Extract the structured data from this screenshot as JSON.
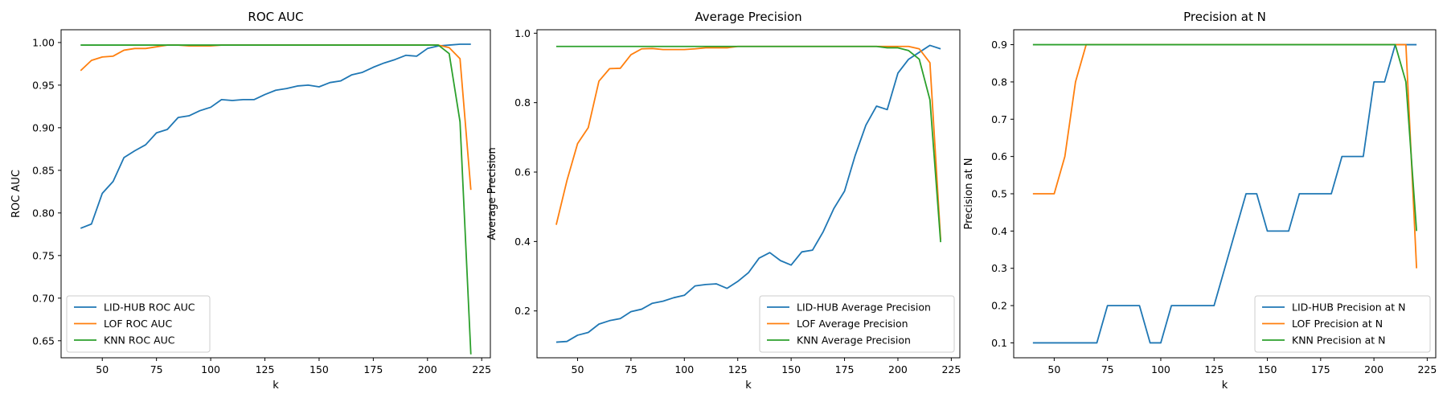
{
  "chart_data": [
    {
      "type": "line",
      "title": "ROC AUC",
      "xlabel": "k",
      "ylabel": "ROC AUC",
      "xlim": [
        31,
        229
      ],
      "ylim": [
        0.63,
        1.015
      ],
      "xticks": [
        50,
        75,
        100,
        125,
        150,
        175,
        200,
        225
      ],
      "yticks": [
        0.65,
        0.7,
        0.75,
        0.8,
        0.85,
        0.9,
        0.95,
        1.0
      ],
      "ytick_decimals": 2,
      "legend_position": "lower-left",
      "grid": false,
      "x": [
        40,
        45,
        50,
        55,
        60,
        65,
        70,
        75,
        80,
        85,
        90,
        95,
        100,
        105,
        110,
        115,
        120,
        125,
        130,
        135,
        140,
        145,
        150,
        155,
        160,
        165,
        170,
        175,
        180,
        185,
        190,
        195,
        200,
        205,
        210,
        215,
        220
      ],
      "series": [
        {
          "name": "LID-HUB ROC AUC",
          "color": "#1f77b4",
          "values": [
            0.782,
            0.787,
            0.823,
            0.837,
            0.865,
            0.873,
            0.88,
            0.894,
            0.898,
            0.912,
            0.914,
            0.92,
            0.924,
            0.933,
            0.932,
            0.933,
            0.933,
            0.939,
            0.944,
            0.946,
            0.949,
            0.95,
            0.948,
            0.953,
            0.955,
            0.962,
            0.965,
            0.971,
            0.976,
            0.98,
            0.985,
            0.984,
            0.993,
            0.996,
            0.997,
            0.998,
            0.998
          ]
        },
        {
          "name": "LOF ROC AUC",
          "color": "#ff7f0e",
          "values": [
            0.967,
            0.979,
            0.983,
            0.984,
            0.991,
            0.993,
            0.993,
            0.995,
            0.997,
            0.997,
            0.996,
            0.996,
            0.996,
            0.997,
            0.997,
            0.997,
            0.997,
            0.997,
            0.997,
            0.997,
            0.997,
            0.997,
            0.997,
            0.997,
            0.997,
            0.997,
            0.997,
            0.997,
            0.997,
            0.997,
            0.997,
            0.997,
            0.997,
            0.997,
            0.994,
            0.981,
            0.827
          ]
        },
        {
          "name": "KNN ROC AUC",
          "color": "#2ca02c",
          "values": [
            0.997,
            0.997,
            0.997,
            0.997,
            0.997,
            0.997,
            0.997,
            0.997,
            0.997,
            0.997,
            0.997,
            0.997,
            0.997,
            0.997,
            0.997,
            0.997,
            0.997,
            0.997,
            0.997,
            0.997,
            0.997,
            0.997,
            0.997,
            0.997,
            0.997,
            0.997,
            0.997,
            0.997,
            0.997,
            0.997,
            0.997,
            0.997,
            0.997,
            0.997,
            0.987,
            0.907,
            0.634
          ]
        }
      ]
    },
    {
      "type": "line",
      "title": "Average Precision",
      "xlabel": "k",
      "ylabel": "Average Precision",
      "xlim": [
        31,
        229
      ],
      "ylim": [
        0.065,
        1.01
      ],
      "xticks": [
        50,
        75,
        100,
        125,
        150,
        175,
        200,
        225
      ],
      "yticks": [
        0.2,
        0.4,
        0.6,
        0.8,
        1.0
      ],
      "ytick_decimals": 1,
      "legend_position": "lower-right",
      "grid": false,
      "x": [
        40,
        45,
        50,
        55,
        60,
        65,
        70,
        75,
        80,
        85,
        90,
        95,
        100,
        105,
        110,
        115,
        120,
        125,
        130,
        135,
        140,
        145,
        150,
        155,
        160,
        165,
        170,
        175,
        180,
        185,
        190,
        195,
        200,
        205,
        210,
        215,
        220
      ],
      "series": [
        {
          "name": "LID-HUB Average Precision",
          "color": "#1f77b4",
          "values": [
            0.11,
            0.112,
            0.13,
            0.138,
            0.162,
            0.172,
            0.178,
            0.198,
            0.205,
            0.222,
            0.228,
            0.238,
            0.245,
            0.272,
            0.276,
            0.278,
            0.265,
            0.285,
            0.31,
            0.352,
            0.368,
            0.345,
            0.332,
            0.37,
            0.375,
            0.428,
            0.495,
            0.545,
            0.648,
            0.735,
            0.79,
            0.78,
            0.885,
            0.925,
            0.945,
            0.965,
            0.955
          ]
        },
        {
          "name": "LOF Average Precision",
          "color": "#ff7f0e",
          "values": [
            0.448,
            0.575,
            0.682,
            0.728,
            0.862,
            0.898,
            0.899,
            0.938,
            0.955,
            0.956,
            0.953,
            0.953,
            0.953,
            0.955,
            0.958,
            0.958,
            0.958,
            0.962,
            0.962,
            0.962,
            0.962,
            0.962,
            0.962,
            0.962,
            0.962,
            0.962,
            0.962,
            0.962,
            0.962,
            0.962,
            0.962,
            0.962,
            0.962,
            0.962,
            0.955,
            0.915,
            0.405
          ]
        },
        {
          "name": "KNN Average Precision",
          "color": "#2ca02c",
          "values": [
            0.962,
            0.962,
            0.962,
            0.962,
            0.962,
            0.962,
            0.962,
            0.962,
            0.962,
            0.962,
            0.962,
            0.962,
            0.962,
            0.962,
            0.962,
            0.962,
            0.962,
            0.962,
            0.962,
            0.962,
            0.962,
            0.962,
            0.962,
            0.962,
            0.962,
            0.962,
            0.962,
            0.962,
            0.962,
            0.962,
            0.962,
            0.958,
            0.958,
            0.95,
            0.925,
            0.808,
            0.398
          ]
        }
      ]
    },
    {
      "type": "line",
      "title": "Precision at N",
      "xlabel": "k",
      "ylabel": "Precision at N",
      "xlim": [
        31,
        229
      ],
      "ylim": [
        0.06,
        0.94
      ],
      "xticks": [
        50,
        75,
        100,
        125,
        150,
        175,
        200,
        225
      ],
      "yticks": [
        0.1,
        0.2,
        0.3,
        0.4,
        0.5,
        0.6,
        0.7,
        0.8,
        0.9
      ],
      "ytick_decimals": 1,
      "legend_position": "lower-right",
      "grid": false,
      "x": [
        40,
        45,
        50,
        55,
        60,
        65,
        70,
        75,
        80,
        85,
        90,
        95,
        100,
        105,
        110,
        115,
        120,
        125,
        130,
        135,
        140,
        145,
        150,
        155,
        160,
        165,
        170,
        175,
        180,
        185,
        190,
        195,
        200,
        205,
        210,
        215,
        220
      ],
      "series": [
        {
          "name": "LID-HUB Precision at N",
          "color": "#1f77b4",
          "values": [
            0.1,
            0.1,
            0.1,
            0.1,
            0.1,
            0.1,
            0.1,
            0.2,
            0.2,
            0.2,
            0.2,
            0.1,
            0.1,
            0.2,
            0.2,
            0.2,
            0.2,
            0.2,
            0.3,
            0.4,
            0.5,
            0.5,
            0.4,
            0.4,
            0.4,
            0.5,
            0.5,
            0.5,
            0.5,
            0.6,
            0.6,
            0.6,
            0.8,
            0.8,
            0.9,
            0.9,
            0.9
          ]
        },
        {
          "name": "LOF Precision at N",
          "color": "#ff7f0e",
          "values": [
            0.5,
            0.5,
            0.5,
            0.6,
            0.8,
            0.9,
            0.9,
            0.9,
            0.9,
            0.9,
            0.9,
            0.9,
            0.9,
            0.9,
            0.9,
            0.9,
            0.9,
            0.9,
            0.9,
            0.9,
            0.9,
            0.9,
            0.9,
            0.9,
            0.9,
            0.9,
            0.9,
            0.9,
            0.9,
            0.9,
            0.9,
            0.9,
            0.9,
            0.9,
            0.9,
            0.9,
            0.3
          ]
        },
        {
          "name": "KNN Precision at N",
          "color": "#2ca02c",
          "values": [
            0.9,
            0.9,
            0.9,
            0.9,
            0.9,
            0.9,
            0.9,
            0.9,
            0.9,
            0.9,
            0.9,
            0.9,
            0.9,
            0.9,
            0.9,
            0.9,
            0.9,
            0.9,
            0.9,
            0.9,
            0.9,
            0.9,
            0.9,
            0.9,
            0.9,
            0.9,
            0.9,
            0.9,
            0.9,
            0.9,
            0.9,
            0.9,
            0.9,
            0.9,
            0.9,
            0.8,
            0.4
          ]
        }
      ]
    }
  ]
}
